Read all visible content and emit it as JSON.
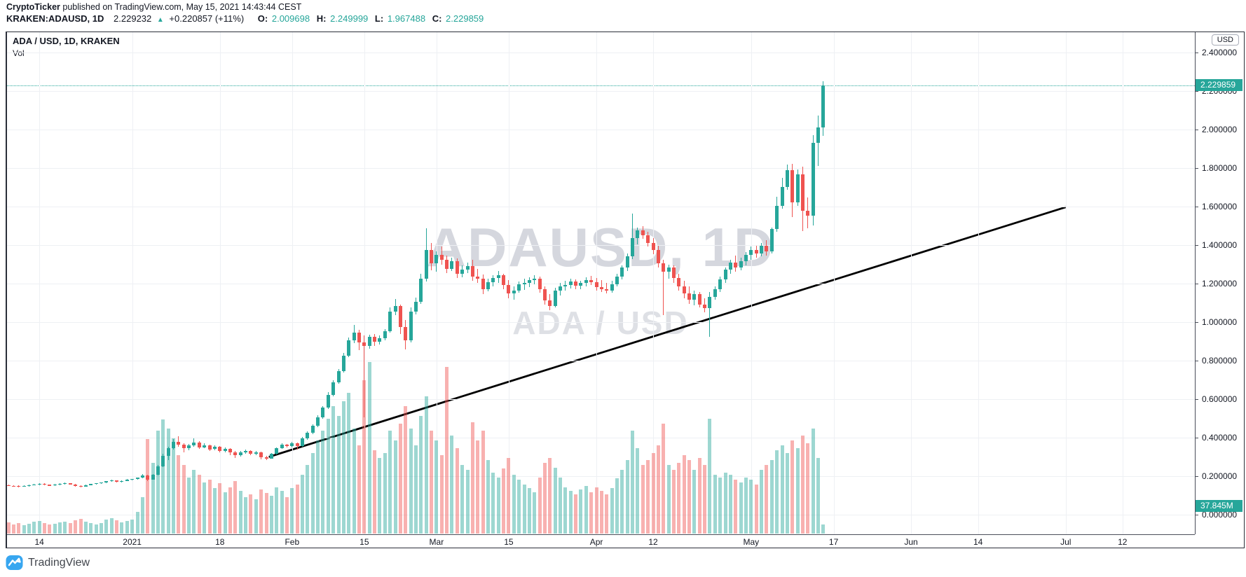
{
  "header": {
    "byline": {
      "author": "CryptoTicker",
      "rest": " published on TradingView.com, May 15, 2021 14:43:44 CEST"
    },
    "symbol": {
      "name": "KRAKEN:ADAUSD, 1D",
      "last": "2.229232",
      "arrow": "▲",
      "change": "+0.220857 (+11%)",
      "o_label": "O:",
      "o": "2.009698",
      "h_label": "H:",
      "h": "2.249999",
      "l_label": "L:",
      "l": "1.967488",
      "c_label": "C:",
      "c": "2.229859"
    }
  },
  "chart": {
    "legend": {
      "title": "ADA / USD, 1D, KRAKEN",
      "indicator": "Vol"
    },
    "watermark": {
      "line1": "ADAUSD, 1D",
      "line2": "ADA / USD"
    },
    "axis_currency": "USD",
    "price_badge": "2.229859",
    "volume_badge": "37.845M"
  },
  "footer": {
    "logo_text": "TradingView"
  },
  "chart_data": {
    "type": "candlestick",
    "symbol": "ADA/USD",
    "exchange": "KRAKEN",
    "interval": "1D",
    "start_date": "2020-12-08",
    "end_date": "2021-05-15",
    "last_price": 2.229859,
    "last_volume_m": 37.845,
    "y_axis": {
      "min": 0,
      "max": 2.4,
      "tick_step": 0.2,
      "decimals": 6,
      "unit": "USD"
    },
    "x_ticks": [
      {
        "label": "14",
        "day": 6
      },
      {
        "label": "2021",
        "day": 24
      },
      {
        "label": "18",
        "day": 41
      },
      {
        "label": "Feb",
        "day": 55
      },
      {
        "label": "15",
        "day": 69
      },
      {
        "label": "Mar",
        "day": 83
      },
      {
        "label": "15",
        "day": 97
      },
      {
        "label": "Apr",
        "day": 114
      },
      {
        "label": "12",
        "day": 125
      },
      {
        "label": "May",
        "day": 144
      },
      {
        "label": "17",
        "day": 160
      },
      {
        "label": "Jun",
        "day": 175
      },
      {
        "label": "14",
        "day": 188
      },
      {
        "label": "Jul",
        "day": 205
      },
      {
        "label": "12",
        "day": 216
      }
    ],
    "trendline": {
      "from_day": 50.5,
      "from_price": 0.3,
      "to_day": 205,
      "to_price": 1.597
    },
    "colors": {
      "up": "#26a69a",
      "down": "#ef5350",
      "vol_up": "rgba(38,166,154,0.45)",
      "vol_down": "rgba(239,83,80,0.45)",
      "grid": "#eef0f4",
      "text": "#131722",
      "trend": "#000000"
    },
    "candles_format": [
      "open",
      "high",
      "low",
      "close",
      "volume_millions"
    ],
    "candles": [
      [
        0.152,
        0.158,
        0.148,
        0.15,
        45
      ],
      [
        0.15,
        0.153,
        0.145,
        0.148,
        38
      ],
      [
        0.148,
        0.151,
        0.143,
        0.146,
        42
      ],
      [
        0.146,
        0.152,
        0.144,
        0.149,
        35
      ],
      [
        0.149,
        0.156,
        0.147,
        0.153,
        40
      ],
      [
        0.153,
        0.159,
        0.151,
        0.156,
        48
      ],
      [
        0.156,
        0.163,
        0.153,
        0.16,
        52
      ],
      [
        0.16,
        0.162,
        0.152,
        0.155,
        44
      ],
      [
        0.155,
        0.158,
        0.149,
        0.152,
        36
      ],
      [
        0.152,
        0.159,
        0.15,
        0.156,
        41
      ],
      [
        0.156,
        0.162,
        0.153,
        0.159,
        46
      ],
      [
        0.159,
        0.166,
        0.156,
        0.163,
        50
      ],
      [
        0.163,
        0.165,
        0.155,
        0.158,
        43
      ],
      [
        0.158,
        0.16,
        0.146,
        0.15,
        55
      ],
      [
        0.15,
        0.153,
        0.142,
        0.147,
        60
      ],
      [
        0.147,
        0.156,
        0.145,
        0.154,
        48
      ],
      [
        0.154,
        0.161,
        0.151,
        0.159,
        42
      ],
      [
        0.159,
        0.165,
        0.156,
        0.163,
        38
      ],
      [
        0.163,
        0.169,
        0.16,
        0.167,
        44
      ],
      [
        0.167,
        0.175,
        0.164,
        0.173,
        58
      ],
      [
        0.173,
        0.181,
        0.17,
        0.178,
        62
      ],
      [
        0.178,
        0.18,
        0.166,
        0.17,
        54
      ],
      [
        0.17,
        0.178,
        0.168,
        0.176,
        47
      ],
      [
        0.176,
        0.184,
        0.173,
        0.182,
        51
      ],
      [
        0.182,
        0.187,
        0.178,
        0.185,
        56
      ],
      [
        0.185,
        0.194,
        0.182,
        0.192,
        88
      ],
      [
        0.192,
        0.21,
        0.189,
        0.203,
        150
      ],
      [
        0.203,
        0.206,
        0.176,
        0.182,
        385
      ],
      [
        0.182,
        0.212,
        0.18,
        0.208,
        290
      ],
      [
        0.208,
        0.258,
        0.205,
        0.25,
        420
      ],
      [
        0.25,
        0.315,
        0.246,
        0.305,
        465
      ],
      [
        0.305,
        0.352,
        0.285,
        0.345,
        430
      ],
      [
        0.345,
        0.392,
        0.338,
        0.38,
        390
      ],
      [
        0.38,
        0.408,
        0.352,
        0.365,
        320
      ],
      [
        0.365,
        0.372,
        0.322,
        0.345,
        280
      ],
      [
        0.345,
        0.368,
        0.335,
        0.36,
        230
      ],
      [
        0.36,
        0.398,
        0.352,
        0.375,
        260
      ],
      [
        0.375,
        0.382,
        0.34,
        0.35,
        240
      ],
      [
        0.35,
        0.372,
        0.344,
        0.36,
        210
      ],
      [
        0.36,
        0.365,
        0.33,
        0.34,
        220
      ],
      [
        0.34,
        0.36,
        0.334,
        0.352,
        185
      ],
      [
        0.352,
        0.356,
        0.322,
        0.33,
        205
      ],
      [
        0.33,
        0.35,
        0.325,
        0.342,
        170
      ],
      [
        0.342,
        0.346,
        0.31,
        0.322,
        190
      ],
      [
        0.322,
        0.33,
        0.295,
        0.308,
        215
      ],
      [
        0.308,
        0.332,
        0.302,
        0.325,
        175
      ],
      [
        0.325,
        0.34,
        0.318,
        0.332,
        150
      ],
      [
        0.332,
        0.336,
        0.308,
        0.315,
        160
      ],
      [
        0.315,
        0.33,
        0.31,
        0.322,
        140
      ],
      [
        0.322,
        0.326,
        0.288,
        0.298,
        180
      ],
      [
        0.298,
        0.305,
        0.284,
        0.292,
        165
      ],
      [
        0.292,
        0.32,
        0.29,
        0.315,
        155
      ],
      [
        0.315,
        0.35,
        0.312,
        0.345,
        190
      ],
      [
        0.345,
        0.372,
        0.34,
        0.362,
        175
      ],
      [
        0.362,
        0.368,
        0.348,
        0.355,
        150
      ],
      [
        0.355,
        0.38,
        0.35,
        0.372,
        185
      ],
      [
        0.372,
        0.376,
        0.338,
        0.358,
        200
      ],
      [
        0.358,
        0.405,
        0.352,
        0.398,
        240
      ],
      [
        0.398,
        0.432,
        0.39,
        0.425,
        280
      ],
      [
        0.425,
        0.47,
        0.418,
        0.462,
        330
      ],
      [
        0.462,
        0.515,
        0.455,
        0.505,
        380
      ],
      [
        0.505,
        0.565,
        0.498,
        0.555,
        420
      ],
      [
        0.555,
        0.635,
        0.548,
        0.622,
        470
      ],
      [
        0.622,
        0.7,
        0.615,
        0.688,
        520
      ],
      [
        0.688,
        0.758,
        0.68,
        0.745,
        480
      ],
      [
        0.745,
        0.84,
        0.738,
        0.825,
        540
      ],
      [
        0.825,
        0.92,
        0.818,
        0.905,
        575
      ],
      [
        0.905,
        0.985,
        0.89,
        0.945,
        430
      ],
      [
        0.945,
        0.96,
        0.855,
        0.895,
        360
      ],
      [
        0.895,
        0.93,
        0.505,
        0.878,
        625
      ],
      [
        0.878,
        0.935,
        0.862,
        0.922,
        700
      ],
      [
        0.922,
        0.94,
        0.878,
        0.898,
        340
      ],
      [
        0.898,
        0.932,
        0.885,
        0.918,
        310
      ],
      [
        0.918,
        0.965,
        0.905,
        0.952,
        330
      ],
      [
        0.952,
        1.075,
        0.945,
        1.055,
        420
      ],
      [
        1.055,
        1.12,
        1.035,
        1.085,
        380
      ],
      [
        1.085,
        1.092,
        0.938,
        0.975,
        450
      ],
      [
        0.975,
        1.01,
        0.858,
        0.905,
        520
      ],
      [
        0.905,
        1.078,
        0.895,
        1.055,
        430
      ],
      [
        1.055,
        1.128,
        1.04,
        1.105,
        360
      ],
      [
        1.105,
        1.252,
        1.095,
        1.225,
        480
      ],
      [
        1.225,
        1.488,
        1.212,
        1.375,
        560
      ],
      [
        1.375,
        1.412,
        1.27,
        1.305,
        420
      ],
      [
        1.305,
        1.368,
        1.262,
        1.35,
        380
      ],
      [
        1.35,
        1.392,
        1.298,
        1.322,
        320
      ],
      [
        1.322,
        1.345,
        1.255,
        1.278,
        680
      ],
      [
        1.278,
        1.335,
        1.265,
        1.318,
        400
      ],
      [
        1.318,
        1.33,
        1.228,
        1.252,
        350
      ],
      [
        1.252,
        1.295,
        1.232,
        1.272,
        280
      ],
      [
        1.272,
        1.308,
        1.255,
        1.292,
        260
      ],
      [
        1.292,
        1.322,
        1.215,
        1.238,
        455
      ],
      [
        1.238,
        1.275,
        1.205,
        1.225,
        380
      ],
      [
        1.225,
        1.248,
        1.145,
        1.172,
        420
      ],
      [
        1.172,
        1.225,
        1.16,
        1.208,
        300
      ],
      [
        1.208,
        1.242,
        1.186,
        1.228,
        250
      ],
      [
        1.228,
        1.265,
        1.202,
        1.245,
        230
      ],
      [
        1.245,
        1.252,
        1.172,
        1.192,
        265
      ],
      [
        1.192,
        1.218,
        1.125,
        1.148,
        310
      ],
      [
        1.148,
        1.185,
        1.118,
        1.165,
        240
      ],
      [
        1.165,
        1.212,
        1.152,
        1.198,
        220
      ],
      [
        1.198,
        1.225,
        1.168,
        1.205,
        200
      ],
      [
        1.205,
        1.232,
        1.182,
        1.218,
        185
      ],
      [
        1.218,
        1.242,
        1.195,
        1.225,
        170
      ],
      [
        1.225,
        1.238,
        1.152,
        1.172,
        230
      ],
      [
        1.172,
        1.185,
        1.092,
        1.112,
        290
      ],
      [
        1.112,
        1.145,
        1.062,
        1.082,
        310
      ],
      [
        1.082,
        1.178,
        1.075,
        1.162,
        270
      ],
      [
        1.162,
        1.205,
        1.138,
        1.185,
        230
      ],
      [
        1.185,
        1.215,
        1.162,
        1.192,
        190
      ],
      [
        1.192,
        1.225,
        1.175,
        1.212,
        175
      ],
      [
        1.212,
        1.222,
        1.172,
        1.188,
        160
      ],
      [
        1.188,
        1.215,
        1.17,
        1.202,
        180
      ],
      [
        1.202,
        1.232,
        1.185,
        1.218,
        195
      ],
      [
        1.218,
        1.24,
        1.192,
        1.208,
        170
      ],
      [
        1.208,
        1.228,
        1.162,
        1.182,
        190
      ],
      [
        1.182,
        1.218,
        1.155,
        1.172,
        175
      ],
      [
        1.172,
        1.205,
        1.148,
        1.162,
        160
      ],
      [
        1.162,
        1.215,
        1.152,
        1.198,
        185
      ],
      [
        1.198,
        1.252,
        1.185,
        1.238,
        225
      ],
      [
        1.238,
        1.295,
        1.222,
        1.282,
        260
      ],
      [
        1.282,
        1.358,
        1.265,
        1.342,
        300
      ],
      [
        1.342,
        1.565,
        1.328,
        1.438,
        420
      ],
      [
        1.438,
        1.492,
        1.402,
        1.475,
        350
      ],
      [
        1.475,
        1.498,
        1.432,
        1.452,
        280
      ],
      [
        1.452,
        1.468,
        1.392,
        1.412,
        300
      ],
      [
        1.412,
        1.435,
        1.352,
        1.375,
        330
      ],
      [
        1.375,
        1.398,
        1.282,
        1.305,
        360
      ],
      [
        1.305,
        1.322,
        1.038,
        1.262,
        450
      ],
      [
        1.262,
        1.298,
        1.225,
        1.282,
        280
      ],
      [
        1.282,
        1.295,
        1.205,
        1.228,
        260
      ],
      [
        1.228,
        1.252,
        1.162,
        1.185,
        290
      ],
      [
        1.185,
        1.215,
        1.122,
        1.148,
        320
      ],
      [
        1.148,
        1.185,
        1.095,
        1.118,
        300
      ],
      [
        1.118,
        1.162,
        1.088,
        1.145,
        260
      ],
      [
        1.145,
        1.158,
        1.075,
        1.092,
        310
      ],
      [
        1.092,
        1.125,
        1.052,
        1.072,
        280
      ],
      [
        1.072,
        1.155,
        0.922,
        1.132,
        470
      ],
      [
        1.132,
        1.185,
        1.118,
        1.172,
        240
      ],
      [
        1.172,
        1.235,
        1.158,
        1.222,
        230
      ],
      [
        1.222,
        1.285,
        1.205,
        1.272,
        250
      ],
      [
        1.272,
        1.322,
        1.252,
        1.308,
        240
      ],
      [
        1.308,
        1.345,
        1.262,
        1.285,
        220
      ],
      [
        1.285,
        1.335,
        1.268,
        1.318,
        210
      ],
      [
        1.318,
        1.362,
        1.295,
        1.348,
        230
      ],
      [
        1.348,
        1.392,
        1.322,
        1.375,
        220
      ],
      [
        1.375,
        1.398,
        1.335,
        1.358,
        200
      ],
      [
        1.358,
        1.412,
        1.342,
        1.395,
        260
      ],
      [
        1.395,
        1.425,
        1.345,
        1.368,
        280
      ],
      [
        1.368,
        1.492,
        1.355,
        1.482,
        300
      ],
      [
        1.482,
        1.652,
        1.468,
        1.605,
        340
      ],
      [
        1.605,
        1.748,
        1.588,
        1.702,
        360
      ],
      [
        1.702,
        1.818,
        1.688,
        1.788,
        330
      ],
      [
        1.788,
        1.822,
        1.545,
        1.622,
        380
      ],
      [
        1.622,
        1.792,
        1.605,
        1.768,
        350
      ],
      [
        1.768,
        1.808,
        1.472,
        1.578,
        400
      ],
      [
        1.578,
        1.648,
        1.488,
        1.552,
        370
      ],
      [
        1.552,
        1.972,
        1.502,
        1.932,
        430
      ],
      [
        1.932,
        2.072,
        1.812,
        2.012,
        310
      ],
      [
        2.01,
        2.25,
        1.967,
        2.23,
        37.845
      ]
    ]
  }
}
